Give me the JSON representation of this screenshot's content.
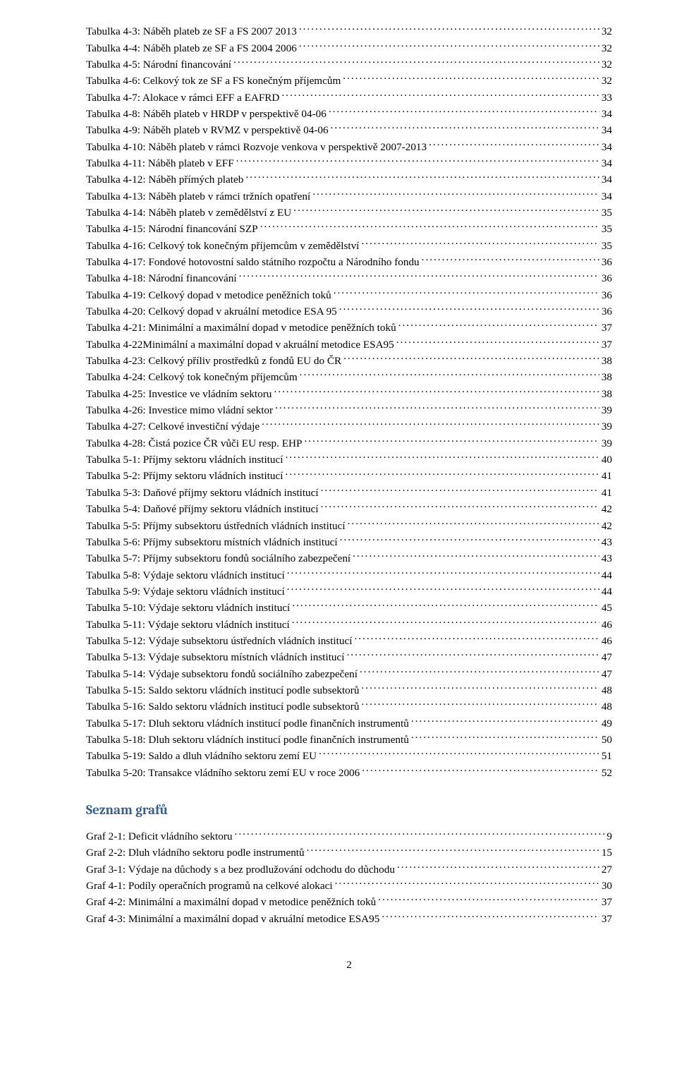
{
  "tables_heading": null,
  "tables": [
    {
      "label": "Tabulka 4-3: Náběh plateb ze SF a FS 2007 2013",
      "page": "32"
    },
    {
      "label": "Tabulka 4-4: Náběh plateb ze SF a FS 2004 2006",
      "page": "32"
    },
    {
      "label": "Tabulka 4-5: Národní financování",
      "page": "32"
    },
    {
      "label": "Tabulka 4-6: Celkový tok ze SF a FS konečným příjemcům",
      "page": "32"
    },
    {
      "label": "Tabulka 4-7: Alokace v rámci EFF a EAFRD",
      "page": "33"
    },
    {
      "label": "Tabulka 4-8: Náběh plateb v HRDP v perspektivě 04-06",
      "page": "34"
    },
    {
      "label": "Tabulka 4-9: Náběh plateb v RVMZ v perspektivě 04-06",
      "page": "34"
    },
    {
      "label": "Tabulka 4-10: Náběh plateb v rámci Rozvoje venkova v perspektivě 2007-2013",
      "page": "34"
    },
    {
      "label": "Tabulka 4-11: Náběh plateb v EFF",
      "page": "34"
    },
    {
      "label": "Tabulka 4-12: Náběh přímých plateb",
      "page": "34"
    },
    {
      "label": "Tabulka 4-13: Náběh plateb v rámci tržních opatření",
      "page": "34"
    },
    {
      "label": "Tabulka 4-14: Náběh plateb v zemědělství z EU",
      "page": "35"
    },
    {
      "label": "Tabulka 4-15: Národní financování SZP",
      "page": "35"
    },
    {
      "label": "Tabulka 4-16: Celkový tok konečným příjemcům v zemědělství",
      "page": "35"
    },
    {
      "label": "Tabulka 4-17: Fondové hotovostní saldo státního rozpočtu a Národního fondu",
      "page": "36"
    },
    {
      "label": "Tabulka 4-18: Národní financování",
      "page": "36"
    },
    {
      "label": "Tabulka 4-19: Celkový dopad v metodice peněžních toků",
      "page": "36"
    },
    {
      "label": "Tabulka 4-20: Celkový dopad v akruální metodice ESA 95",
      "page": "36"
    },
    {
      "label": "Tabulka 4-21: Minimální a maximální dopad v metodice peněžních toků",
      "page": "37"
    },
    {
      "label": "Tabulka 4-22Minimální a maximální dopad v akruální metodice ESA95",
      "page": "37"
    },
    {
      "label": "Tabulka 4-23: Celkový příliv prostředků z fondů EU do ČR",
      "page": "38"
    },
    {
      "label": "Tabulka 4-24: Celkový tok konečným příjemcům",
      "page": "38"
    },
    {
      "label": "Tabulka 4-25: Investice ve vládním sektoru",
      "page": "38"
    },
    {
      "label": "Tabulka 4-26: Investice mimo vládní sektor",
      "page": "39"
    },
    {
      "label": "Tabulka 4-27: Celkové investiční výdaje",
      "page": "39"
    },
    {
      "label": "Tabulka 4-28: Čistá pozice ČR vůči EU resp. EHP",
      "page": "39"
    },
    {
      "label": "Tabulka 5-1: Příjmy sektoru vládních institucí",
      "page": "40"
    },
    {
      "label": "Tabulka 5-2: Příjmy sektoru vládních institucí",
      "page": "41"
    },
    {
      "label": "Tabulka 5-3: Daňové příjmy sektoru vládních institucí",
      "page": "41"
    },
    {
      "label": "Tabulka 5-4: Daňové příjmy sektoru vládních institucí",
      "page": "42"
    },
    {
      "label": "Tabulka 5-5: Příjmy subsektoru ústředních vládních institucí",
      "page": "42"
    },
    {
      "label": "Tabulka 5-6: Příjmy subsektoru místních vládních institucí",
      "page": "43"
    },
    {
      "label": "Tabulka 5-7: Příjmy subsektoru fondů sociálního zabezpečení",
      "page": "43"
    },
    {
      "label": "Tabulka 5-8: Výdaje sektoru vládních institucí",
      "page": "44"
    },
    {
      "label": "Tabulka 5-9: Výdaje sektoru vládních institucí",
      "page": "44"
    },
    {
      "label": "Tabulka 5-10: Výdaje sektoru vládních institucí",
      "page": "45"
    },
    {
      "label": "Tabulka 5-11: Výdaje sektoru vládních institucí",
      "page": "46"
    },
    {
      "label": "Tabulka 5-12: Výdaje subsektoru ústředních vládních institucí",
      "page": "46"
    },
    {
      "label": "Tabulka 5-13: Výdaje subsektoru místních vládních institucí",
      "page": "47"
    },
    {
      "label": "Tabulka 5-14: Výdaje subsektoru fondů sociálního zabezpečení",
      "page": "47"
    },
    {
      "label": "Tabulka 5-15: Saldo sektoru vládních institucí podle subsektorů",
      "page": "48"
    },
    {
      "label": "Tabulka 5-16: Saldo sektoru vládních institucí podle subsektorů",
      "page": "48"
    },
    {
      "label": "Tabulka 5-17: Dluh sektoru vládních institucí podle finančních instrumentů",
      "page": "49"
    },
    {
      "label": "Tabulka 5-18: Dluh sektoru vládních institucí podle finančních instrumentů",
      "page": "50"
    },
    {
      "label": "Tabulka 5-19: Saldo a dluh vládního sektoru zemí EU",
      "page": "51"
    },
    {
      "label": "Tabulka 5-20: Transakce vládního sektoru zemí EU v roce 2006",
      "page": "52"
    }
  ],
  "graphs_heading": "Seznam grafů",
  "graphs": [
    {
      "label": "Graf 2-1: Deficit vládního sektoru",
      "page": "9"
    },
    {
      "label": "Graf 2-2: Dluh vládního sektoru podle instrumentů",
      "page": "15"
    },
    {
      "label": "Graf 3-1: Výdaje na důchody s a bez prodlužování odchodu do důchodu",
      "page": "27"
    },
    {
      "label": "Graf 4-1: Podíly operačních programů na celkové alokaci",
      "page": "30"
    },
    {
      "label": "Graf 4-2: Minimální a maximální dopad v metodice peněžních toků",
      "page": "37"
    },
    {
      "label": "Graf 4-3: Minimální a maximální dopad v akruální metodice ESA95",
      "page": "37"
    }
  ],
  "page_number": "2",
  "colors": {
    "heading": "#365f91",
    "text": "#000000",
    "background": "#ffffff"
  },
  "fonts": {
    "body_family": "Times New Roman",
    "body_size_pt": 11.5,
    "heading_family": "Cambria",
    "heading_size_pt": 14,
    "heading_weight": "bold"
  }
}
